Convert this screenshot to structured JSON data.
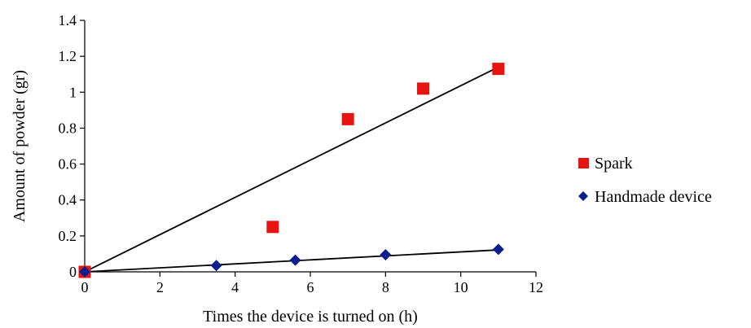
{
  "chart_data": {
    "type": "scatter",
    "xlabel": "Times the device is turned on (h)",
    "ylabel": "Amount of powder (gr)",
    "xlim": [
      0,
      12
    ],
    "ylim": [
      0,
      1.4
    ],
    "x_ticks": [
      0,
      2,
      4,
      6,
      8,
      10,
      12
    ],
    "y_ticks": [
      0,
      0.2,
      0.4,
      0.6,
      0.8,
      1,
      1.2,
      1.4
    ],
    "x_tick_labels": [
      "0",
      "2",
      "4",
      "6",
      "8",
      "10",
      "12"
    ],
    "y_tick_labels": [
      "0",
      "0.2",
      "0.4",
      "0.6",
      "0.8",
      "1",
      "1.2",
      "1.4"
    ],
    "grid": false,
    "legend_position": "right",
    "series": [
      {
        "name": "Spark",
        "marker": "square",
        "color": "#e8140f",
        "x": [
          0,
          5,
          7,
          9,
          11
        ],
        "y": [
          0,
          0.25,
          0.85,
          1.02,
          1.13
        ],
        "trendline": {
          "from": [
            0,
            0
          ],
          "to": [
            11,
            1.14
          ]
        }
      },
      {
        "name": "Handmade device",
        "marker": "diamond",
        "color": "#0b1f8f",
        "x": [
          0,
          3.5,
          5.6,
          8,
          11
        ],
        "y": [
          0,
          0.035,
          0.065,
          0.095,
          0.125
        ],
        "trendline": {
          "from": [
            0,
            0
          ],
          "to": [
            11,
            0.122
          ]
        }
      }
    ]
  }
}
